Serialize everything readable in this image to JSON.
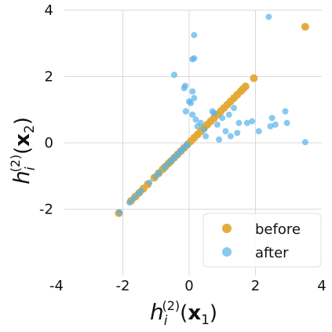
{
  "chart_data": {
    "type": "scatter",
    "xlabel_parts": {
      "h": "h",
      "sub": "i",
      "sup": "(2)",
      "open": "(",
      "vec": "x",
      "vecsub": "1",
      "close": ")"
    },
    "ylabel_parts": {
      "h": "h",
      "sub": "i",
      "sup": "(2)",
      "open": "(",
      "vec": "x",
      "vecsub": "2",
      "close": ")"
    },
    "xlim": [
      -4,
      4
    ],
    "ylim": [
      -4,
      4
    ],
    "xticks": [
      "-4",
      "-2",
      "0",
      "2",
      "4"
    ],
    "yticks": [
      "-2",
      "0",
      "2",
      "4"
    ],
    "grid": true,
    "legend_position": "lower-right",
    "series": [
      {
        "name": "before",
        "color": "#E3A834",
        "points": [
          [
            -2.12,
            -2.12
          ],
          [
            -1.75,
            -1.75
          ],
          [
            -1.62,
            -1.62
          ],
          [
            -1.5,
            -1.5
          ],
          [
            -1.38,
            -1.38
          ],
          [
            -1.25,
            -1.25
          ],
          [
            -1.05,
            -1.05
          ],
          [
            -0.92,
            -0.92
          ],
          [
            -0.8,
            -0.8
          ],
          [
            -0.72,
            -0.72
          ],
          [
            -0.62,
            -0.62
          ],
          [
            -0.55,
            -0.55
          ],
          [
            -0.45,
            -0.45
          ],
          [
            -0.35,
            -0.35
          ],
          [
            -0.25,
            -0.25
          ],
          [
            -0.15,
            -0.15
          ],
          [
            -0.05,
            -0.05
          ],
          [
            0.05,
            0.05
          ],
          [
            0.15,
            0.15
          ],
          [
            0.25,
            0.25
          ],
          [
            0.35,
            0.35
          ],
          [
            0.45,
            0.45
          ],
          [
            0.55,
            0.55
          ],
          [
            0.65,
            0.65
          ],
          [
            0.75,
            0.75
          ],
          [
            0.85,
            0.85
          ],
          [
            0.95,
            0.95
          ],
          [
            1.05,
            1.05
          ],
          [
            1.15,
            1.15
          ],
          [
            1.25,
            1.25
          ],
          [
            1.35,
            1.35
          ],
          [
            1.45,
            1.45
          ],
          [
            1.55,
            1.55
          ],
          [
            1.62,
            1.62
          ],
          [
            1.7,
            1.7
          ],
          [
            1.95,
            1.95
          ],
          [
            3.5,
            3.5
          ]
        ]
      },
      {
        "name": "after",
        "color": "#56B4E9",
        "points": [
          [
            -2.1,
            -2.1
          ],
          [
            -1.8,
            -1.8
          ],
          [
            -1.68,
            -1.68
          ],
          [
            -1.55,
            -1.55
          ],
          [
            -1.45,
            -1.45
          ],
          [
            -1.2,
            -1.2
          ],
          [
            -1.0,
            -1.0
          ],
          [
            -0.9,
            -0.9
          ],
          [
            -0.75,
            -0.75
          ],
          [
            -0.65,
            -0.65
          ],
          [
            -0.55,
            -0.55
          ],
          [
            -0.48,
            -0.48
          ],
          [
            -0.4,
            -0.4
          ],
          [
            -0.32,
            -0.32
          ],
          [
            -0.25,
            -0.25
          ],
          [
            -0.18,
            -0.18
          ],
          [
            -0.1,
            -0.1
          ],
          [
            -0.05,
            -0.05
          ],
          [
            2.4,
            3.8
          ],
          [
            0.15,
            3.25
          ],
          [
            0.15,
            2.55
          ],
          [
            0.1,
            2.52
          ],
          [
            -0.45,
            2.05
          ],
          [
            -0.15,
            1.65
          ],
          [
            -0.12,
            1.72
          ],
          [
            0.1,
            1.55
          ],
          [
            0.15,
            1.35
          ],
          [
            0.05,
            1.2
          ],
          [
            0.0,
            1.25
          ],
          [
            -0.1,
            0.95
          ],
          [
            0.1,
            0.85
          ],
          [
            0.2,
            0.7
          ],
          [
            0.35,
            0.6
          ],
          [
            0.7,
            0.95
          ],
          [
            0.75,
            0.9
          ],
          [
            0.85,
            0.55
          ],
          [
            1.0,
            0.75
          ],
          [
            1.1,
            0.35
          ],
          [
            1.2,
            0.85
          ],
          [
            1.35,
            1.05
          ],
          [
            1.45,
            0.3
          ],
          [
            1.25,
            0.2
          ],
          [
            1.75,
            0.6
          ],
          [
            0.5,
            0.2
          ],
          [
            0.25,
            0.5
          ],
          [
            2.1,
            0.35
          ],
          [
            2.45,
            0.5
          ],
          [
            2.5,
            0.75
          ],
          [
            2.6,
            0.55
          ],
          [
            2.9,
            0.95
          ],
          [
            2.95,
            0.6
          ],
          [
            3.5,
            0.02
          ],
          [
            0.9,
            0.1
          ],
          [
            1.5,
            0.6
          ],
          [
            0.45,
            0.4
          ],
          [
            1.9,
            0.65
          ]
        ]
      }
    ]
  }
}
